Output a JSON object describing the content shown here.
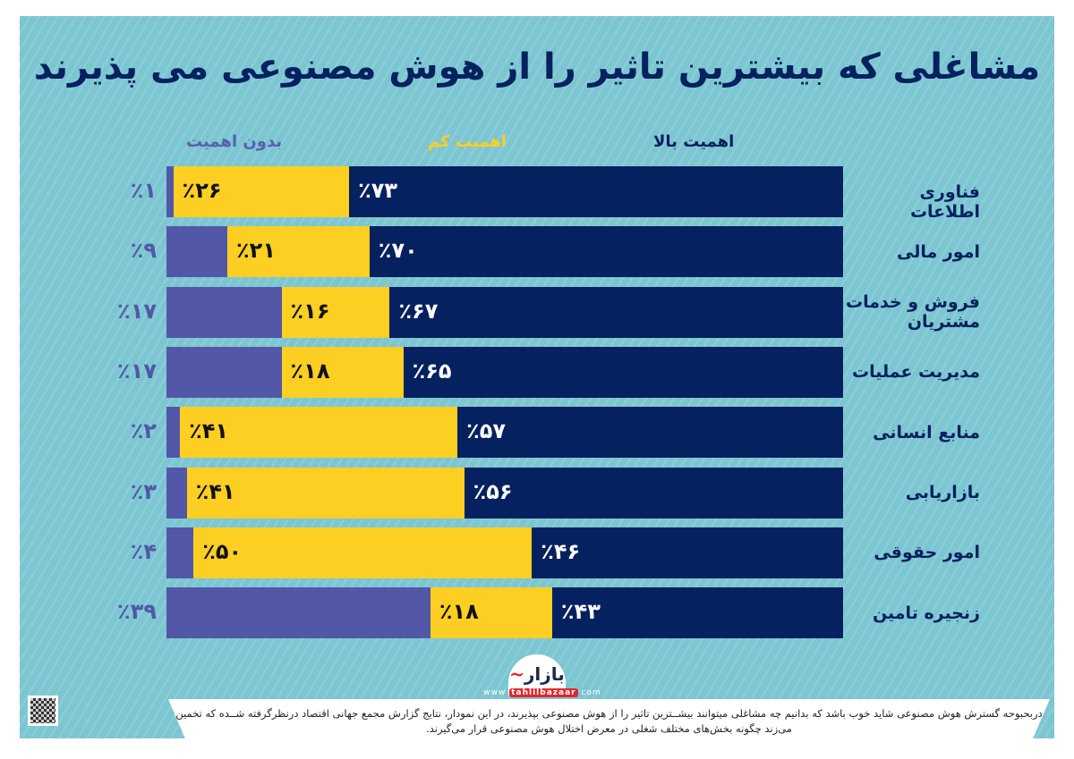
{
  "chart_data": {
    "type": "bar",
    "orientation": "horizontal-stacked",
    "title": "مشاغلی که بیشترین تاثیر را از هوش مصنوعی می پذیرند",
    "categories": [
      "فناوری اطلاعات",
      "امور مالی",
      "فروش و خدمات مشتریان",
      "مدیریت عملیات",
      "منابع انسانی",
      "بازاریابی",
      "امور حقوقی",
      "زنجیره تامین"
    ],
    "series": [
      {
        "name": "اهمیت بالا",
        "color": "#06215f",
        "label_color": "#ffffff",
        "values": [
          73,
          70,
          67,
          65,
          57,
          56,
          46,
          43
        ]
      },
      {
        "name": "اهمیت کم",
        "color": "#fccf22",
        "label_color": "#111111",
        "values": [
          26,
          21,
          16,
          18,
          41,
          41,
          50,
          18
        ]
      },
      {
        "name": "بدون اهمیت",
        "color": "#5257a8",
        "label_color": "#5257a8",
        "values": [
          1,
          9,
          17,
          17,
          2,
          3,
          4,
          39
        ]
      }
    ],
    "xlim": [
      0,
      100
    ],
    "legend": "top",
    "grid": false
  },
  "branding": {
    "logo": "بازار",
    "site": "www.tahlilbazaar.com"
  },
  "footer": {
    "text": "دربحبوحه گسترش هوش مصنوعی شاید خوب باشد که بدانیم چه مشاغلی میتوانند بیشــترین تاثیر را از هوش مصنوعی بپذیرند، در این نمودار، نتایج گزارش مجمع جهانی اقتصاد درنظرگرفته شــده که تخمین می‌زند چگونه بخش‌های مختلف شغلی در معرض اختلال هوش مصنوعی قرار می‌گیرند."
  }
}
